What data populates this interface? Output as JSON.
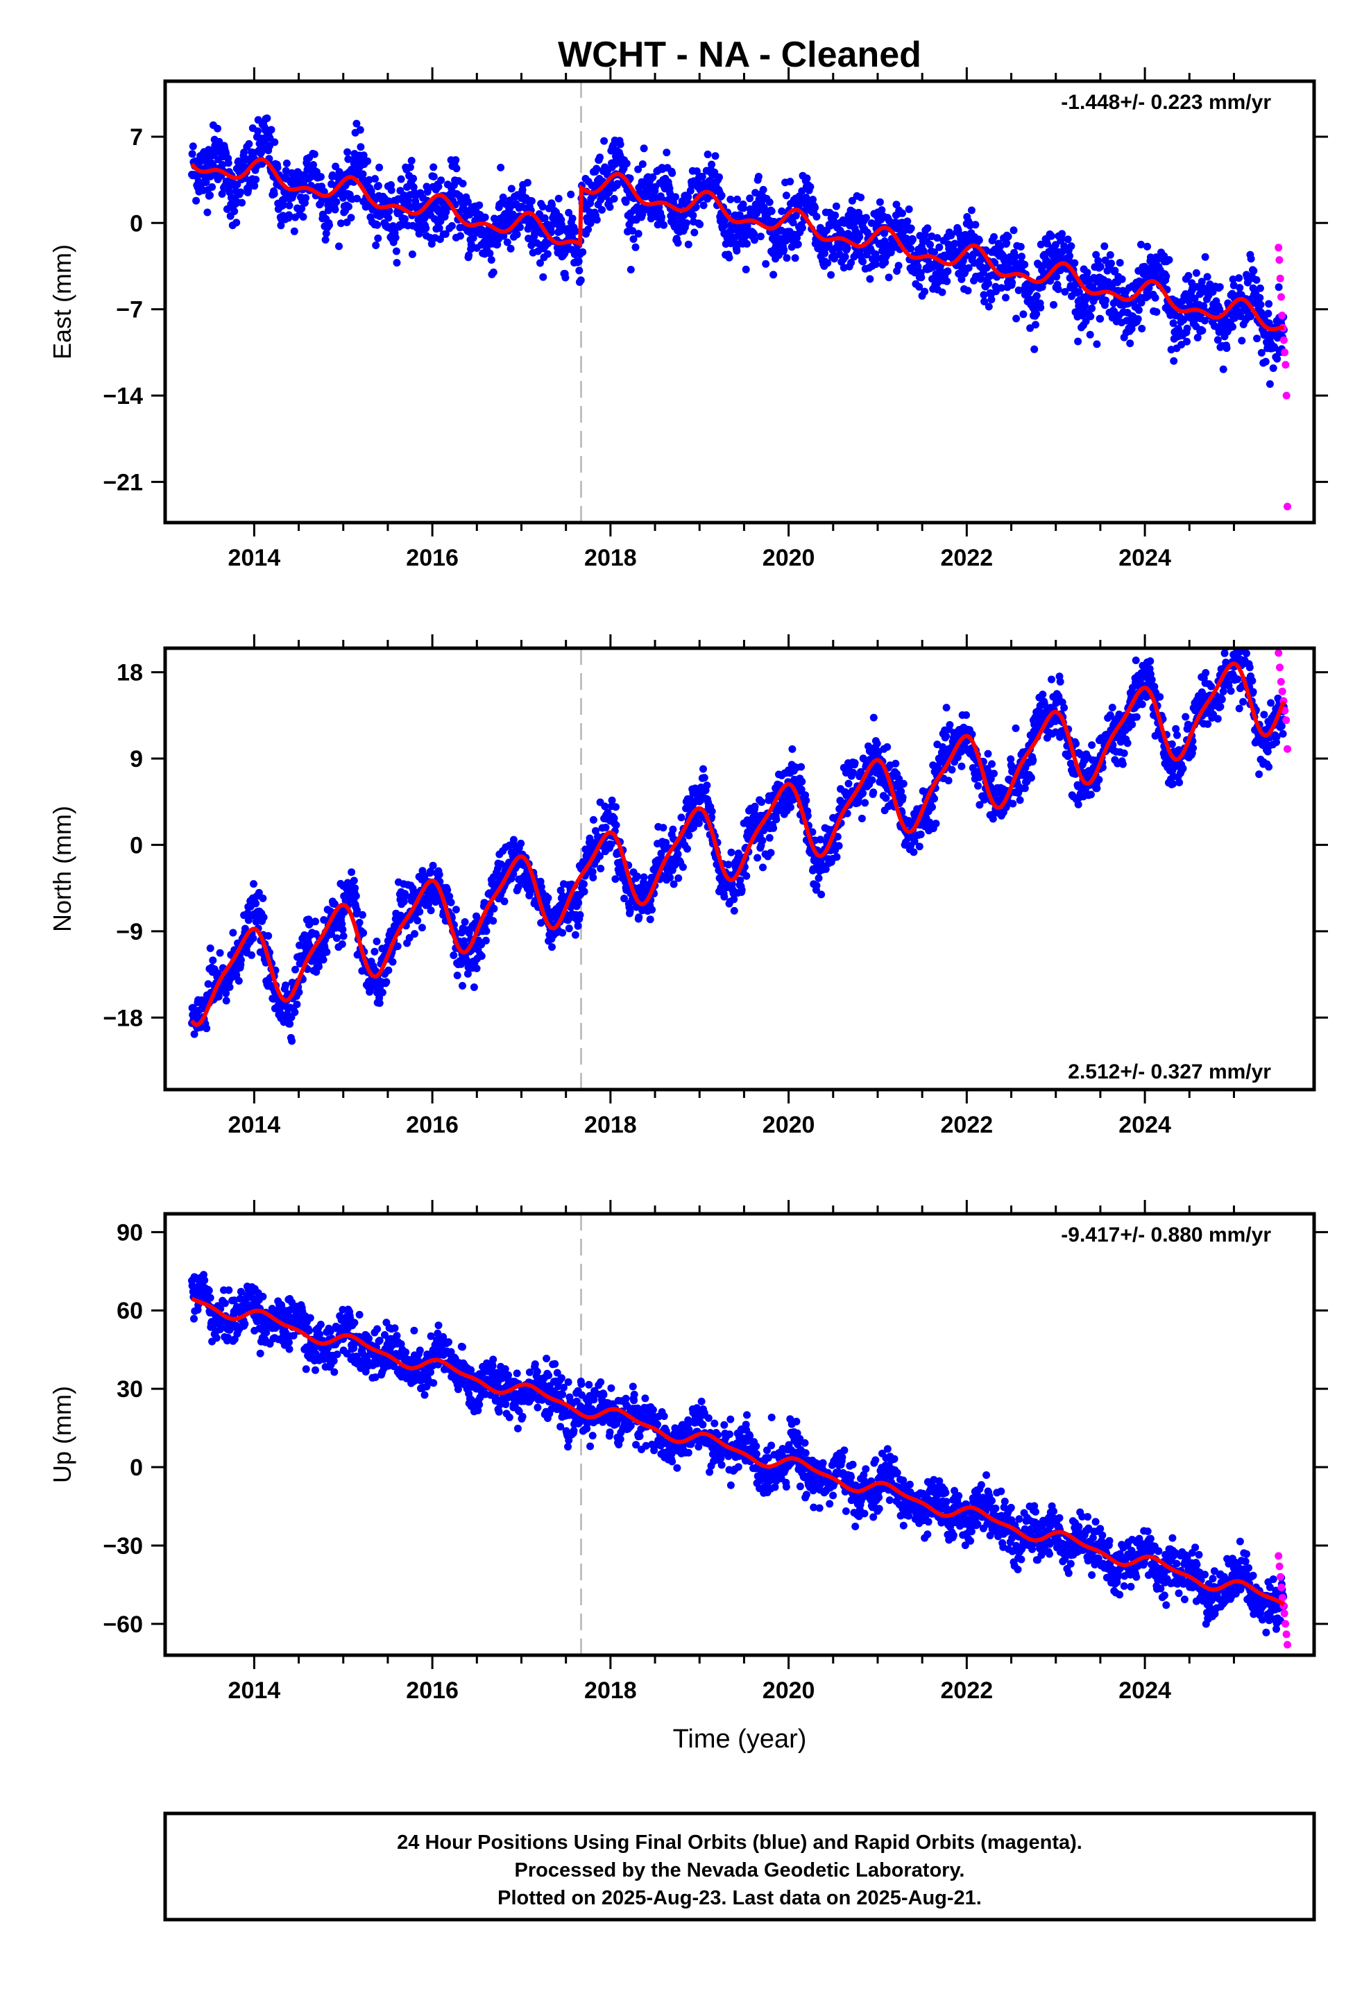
{
  "title": "WCHT  - NA - Cleaned",
  "xlabel": "Time (year)",
  "footer": [
    "24 Hour Positions Using Final Orbits (blue) and Rapid Orbits (magenta).",
    "Processed by the Nevada Geodetic Laboratory.",
    "Plotted on 2025-Aug-23. Last data on 2025-Aug-21."
  ],
  "colors": {
    "final": "#0000ff",
    "rapid": "#ff00ff",
    "model": "#ff0000",
    "event": "#c0c0c0"
  },
  "chart_data": [
    {
      "type": "scatter",
      "ylabel": "East (mm)",
      "rate_text": "-1.448+/- 0.223 mm/yr",
      "rate_position": "top-right",
      "xlim": [
        2013.0,
        2025.9
      ],
      "ylim": [
        -24.3,
        11.5
      ],
      "xticks": [
        2014,
        2016,
        2018,
        2020,
        2022,
        2024
      ],
      "xtick_labels": [
        "2014",
        "2016",
        "2018",
        "2020",
        "2022",
        "2024"
      ],
      "yticks": [
        7,
        0,
        -7,
        -14,
        -21
      ],
      "ytick_labels": [
        "7",
        "0",
        "−7",
        "−14",
        "−21"
      ],
      "event_line_x": 2017.67,
      "x_start": 2013.3,
      "x_end": 2025.56,
      "model": {
        "x0": 2013.3,
        "offset": 5.0,
        "rate": -1.448,
        "amp1": 0.8,
        "phase1": 1.0,
        "amp2": 0.5,
        "phase2": 0.4,
        "jumps": [
          [
            2017.67,
            4.6
          ]
        ]
      },
      "scatter_sd": 1.3,
      "rapid": {
        "x0": 2025.5,
        "x1": 2025.6,
        "values": [
          -2.0,
          -3.0,
          -4.5,
          -6.0,
          -7.5,
          -8.5,
          -9.5,
          -10.5,
          -11.5,
          -14.0,
          -23.0
        ]
      }
    },
    {
      "type": "scatter",
      "ylabel": "North (mm)",
      "rate_text": "2.512+/- 0.327 mm/yr",
      "rate_position": "bottom-right",
      "xlim": [
        2013.0,
        2025.9
      ],
      "ylim": [
        -25.5,
        20.5
      ],
      "xticks": [
        2014,
        2016,
        2018,
        2020,
        2022,
        2024
      ],
      "xtick_labels": [
        "2014",
        "2016",
        "2018",
        "2020",
        "2022",
        "2024"
      ],
      "yticks": [
        18,
        9,
        0,
        -9,
        -18
      ],
      "ytick_labels": [
        "18",
        "9",
        "0",
        "−9",
        "−18"
      ],
      "event_line_x": 2017.67,
      "x_start": 2013.3,
      "x_end": 2025.56,
      "model": {
        "x0": 2013.3,
        "offset": -14.5,
        "rate": 2.512,
        "amp1": 3.8,
        "phase1": 2.1,
        "amp2": 1.0,
        "phase2": 0.8,
        "jumps": []
      },
      "scatter_sd": 1.4,
      "rapid": {
        "x0": 2025.5,
        "x1": 2025.6,
        "values": [
          20.0,
          18.5,
          17.0,
          16.0,
          15.0,
          14.0,
          13.0,
          10.0
        ]
      }
    },
    {
      "type": "scatter",
      "ylabel": "Up (mm)",
      "rate_text": "-9.417+/- 0.880 mm/yr",
      "rate_position": "top-right",
      "xlim": [
        2013.0,
        2025.9
      ],
      "ylim": [
        -72.0,
        97.0
      ],
      "xticks": [
        2014,
        2016,
        2018,
        2020,
        2022,
        2024
      ],
      "xtick_labels": [
        "2014",
        "2016",
        "2018",
        "2020",
        "2022",
        "2024"
      ],
      "yticks": [
        90,
        60,
        30,
        0,
        -30,
        -60
      ],
      "ytick_labels": [
        "90",
        "60",
        "30",
        "0",
        "−30",
        "−60"
      ],
      "event_line_x": 2017.67,
      "x_start": 2013.3,
      "x_end": 2025.56,
      "model": {
        "x0": 2013.3,
        "offset": 64.0,
        "rate": -9.417,
        "amp1": 2.5,
        "phase1": 0.6,
        "amp2": 1.0,
        "phase2": 1.2,
        "jumps": []
      },
      "scatter_sd": 4.5,
      "rapid": {
        "x0": 2025.5,
        "x1": 2025.6,
        "values": [
          -34.0,
          -38.0,
          -42.0,
          -46.0,
          -50.0,
          -53.0,
          -56.0,
          -60.0,
          -64.0,
          -68.0
        ]
      }
    }
  ]
}
